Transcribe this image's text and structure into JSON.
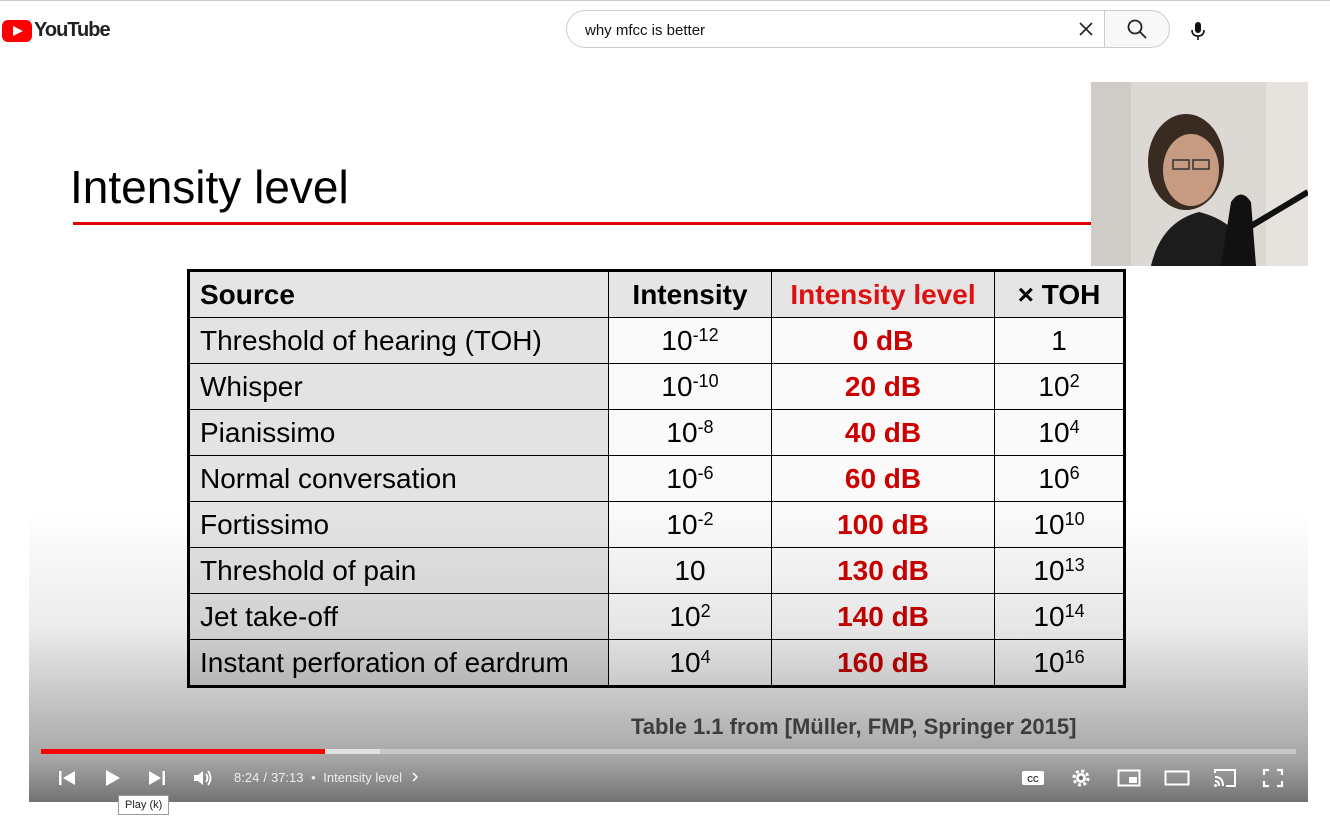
{
  "header": {
    "logo_text": "YouTube",
    "search_value": "why mfcc is better"
  },
  "slide": {
    "title": "Intensity level",
    "columns": [
      "Source",
      "Intensity",
      "Intensity level",
      "× TOH"
    ],
    "rows": [
      {
        "source": "Threshold of hearing (TOH)",
        "base": "10",
        "exp": "-12",
        "level": "0 dB",
        "toh_base": "1",
        "toh_exp": ""
      },
      {
        "source": "Whisper",
        "base": "10",
        "exp": "-10",
        "level": "20 dB",
        "toh_base": "10",
        "toh_exp": "2"
      },
      {
        "source": "Pianissimo",
        "base": "10",
        "exp": "-8",
        "level": "40 dB",
        "toh_base": "10",
        "toh_exp": "4"
      },
      {
        "source": "Normal conversation",
        "base": "10",
        "exp": "-6",
        "level": "60 dB",
        "toh_base": "10",
        "toh_exp": "6"
      },
      {
        "source": "Fortissimo",
        "base": "10",
        "exp": "-2",
        "level": "100 dB",
        "toh_base": "10",
        "toh_exp": "10"
      },
      {
        "source": "Threshold of pain",
        "base": "10",
        "exp": "",
        "level": "130 dB",
        "toh_base": "10",
        "toh_exp": "13"
      },
      {
        "source": "Jet take-off",
        "base": "10",
        "exp": "2",
        "level": "140 dB",
        "toh_base": "10",
        "toh_exp": "14"
      },
      {
        "source": "Instant perforation of eardrum",
        "base": "10",
        "exp": "4",
        "level": "160 dB",
        "toh_base": "10",
        "toh_exp": "16"
      }
    ],
    "caption": "Table 1.1 from [Müller, FMP, Springer 2015]"
  },
  "player": {
    "time_current": "8:24",
    "time_total": "37:13",
    "chapter": "Intensity level",
    "played_fraction": 0.226,
    "tooltip": "Play (k)"
  },
  "colors": {
    "accent": "#ff0000",
    "level_red": "#cc0000"
  }
}
